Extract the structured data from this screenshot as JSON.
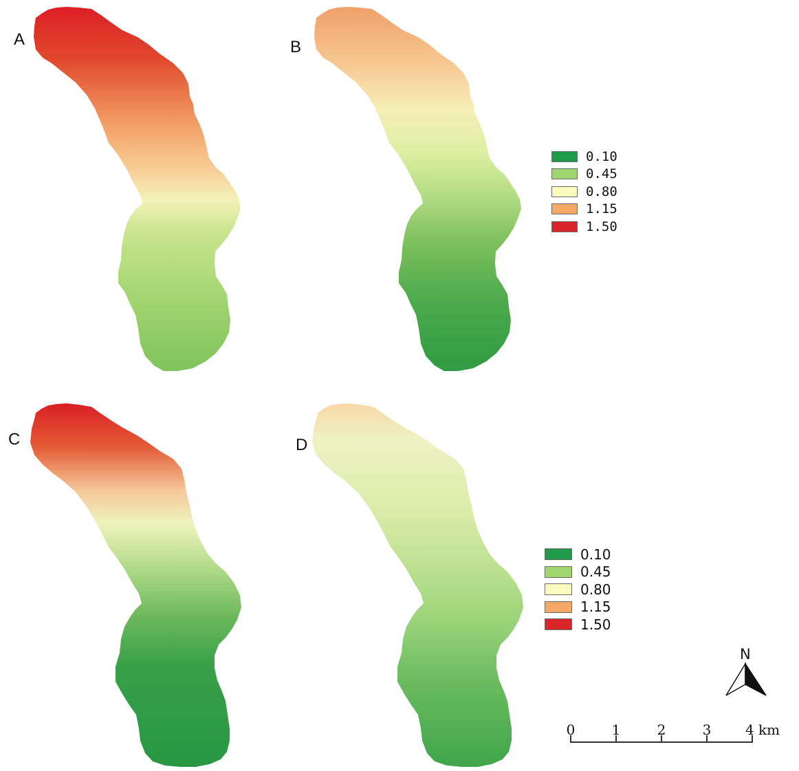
{
  "panels": [
    {
      "label": "A",
      "gradient": [
        [
          0,
          "#dd1f25"
        ],
        [
          0.14,
          "#e0472c"
        ],
        [
          0.32,
          "#f29e64"
        ],
        [
          0.45,
          "#f8cf98"
        ],
        [
          0.53,
          "#f2f3b8"
        ],
        [
          0.62,
          "#c9e48d"
        ],
        [
          0.82,
          "#9ed36e"
        ],
        [
          1,
          "#80c45c"
        ]
      ]
    },
    {
      "label": "B",
      "gradient": [
        [
          0,
          "#f1a06a"
        ],
        [
          0.16,
          "#f7c893"
        ],
        [
          0.28,
          "#f6efb6"
        ],
        [
          0.4,
          "#ddefa3"
        ],
        [
          0.52,
          "#b3dc82"
        ],
        [
          0.64,
          "#7fc05f"
        ],
        [
          0.8,
          "#4eab4c"
        ],
        [
          1,
          "#2f9b43"
        ]
      ]
    },
    {
      "label": "C",
      "gradient": [
        [
          0,
          "#d91f24"
        ],
        [
          0.12,
          "#e35b36"
        ],
        [
          0.24,
          "#f6c89a"
        ],
        [
          0.33,
          "#eef3bd"
        ],
        [
          0.44,
          "#b8de8d"
        ],
        [
          0.58,
          "#6fba5d"
        ],
        [
          0.72,
          "#38a048"
        ],
        [
          1,
          "#279743"
        ]
      ]
    },
    {
      "label": "D",
      "gradient": [
        [
          0,
          "#f8d8a8"
        ],
        [
          0.1,
          "#eef2c3"
        ],
        [
          0.28,
          "#ddedab"
        ],
        [
          0.45,
          "#bde191"
        ],
        [
          0.6,
          "#9ad37a"
        ],
        [
          0.76,
          "#6cbc5f"
        ],
        [
          1,
          "#3fa54b"
        ]
      ]
    }
  ],
  "legend": {
    "entries": [
      {
        "value": "0.10",
        "color": "#1e9a48"
      },
      {
        "value": "0.45",
        "color": "#9fd66e"
      },
      {
        "value": "0.80",
        "color": "#fbfbc0"
      },
      {
        "value": "1.15",
        "color": "#f6a866"
      },
      {
        "value": "1.50",
        "color": "#d9242a"
      }
    ]
  },
  "north_arrow": {
    "letter": "N"
  },
  "scale_bar": {
    "ticks": [
      "0",
      "1",
      "2",
      "3",
      "4 km"
    ]
  }
}
